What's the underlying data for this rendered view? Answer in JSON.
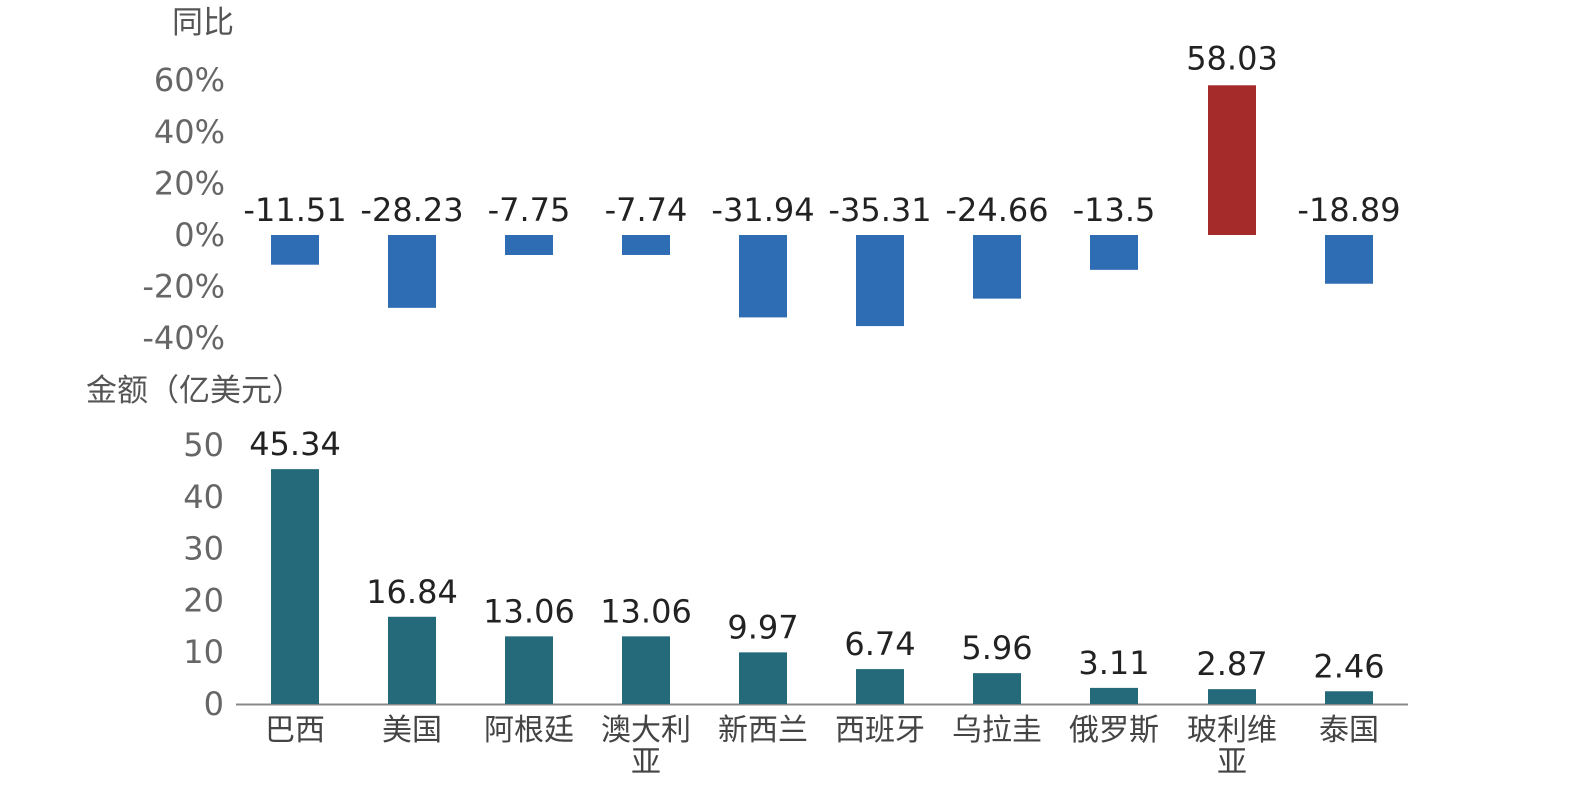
{
  "chart_data": [
    {
      "type": "bar",
      "title": "",
      "ylabel": "同比",
      "xlabel": "",
      "ylim": [
        -40,
        60
      ],
      "yticks": [
        "60%",
        "40%",
        "20%",
        "0%",
        "-20%",
        "-40%"
      ],
      "yticks_values": [
        60,
        40,
        20,
        0,
        -20,
        -40
      ],
      "categories": [
        "巴西",
        "美国",
        "阿根廷",
        "澳大利亚",
        "新西兰",
        "西班牙",
        "乌拉圭",
        "俄罗斯",
        "玻利维亚",
        "泰国"
      ],
      "values": [
        -11.51,
        -28.23,
        -7.75,
        -7.74,
        -31.94,
        -35.31,
        -24.66,
        -13.5,
        58.03,
        -18.89
      ],
      "labels": [
        "-11.51",
        "-28.23",
        "-7.75",
        "-7.74",
        "-31.94",
        "-35.31",
        "-24.66",
        "-13.5",
        "58.03",
        "-18.89"
      ],
      "colors": {
        "negative": "#2e6cb3",
        "positive": "#a52a2a"
      },
      "grid": false
    },
    {
      "type": "bar",
      "title": "",
      "ylabel": "金额（亿美元）",
      "xlabel": "",
      "ylim": [
        0,
        50
      ],
      "yticks": [
        "50",
        "40",
        "30",
        "20",
        "10",
        "0"
      ],
      "yticks_values": [
        50,
        40,
        30,
        20,
        10,
        0
      ],
      "categories": [
        "巴西",
        "美国",
        "阿根廷",
        "澳大利亚",
        "新西兰",
        "西班牙",
        "乌拉圭",
        "俄罗斯",
        "玻利维亚",
        "泰国"
      ],
      "category_lines": [
        [
          "巴西"
        ],
        [
          "美国"
        ],
        [
          "阿根廷"
        ],
        [
          "澳大利",
          "亚"
        ],
        [
          "新西兰"
        ],
        [
          "西班牙"
        ],
        [
          "乌拉圭"
        ],
        [
          "俄罗斯"
        ],
        [
          "玻利维",
          "亚"
        ],
        [
          "泰国"
        ]
      ],
      "values": [
        45.34,
        16.84,
        13.06,
        13.06,
        9.97,
        6.74,
        5.96,
        3.11,
        2.87,
        2.46
      ],
      "labels": [
        "45.34",
        "16.84",
        "13.06",
        "13.06",
        "9.97",
        "6.74",
        "5.96",
        "3.11",
        "2.87",
        "2.46"
      ],
      "colors": {
        "bar": "#256a7b",
        "axis": "#888888"
      },
      "grid": false
    }
  ]
}
